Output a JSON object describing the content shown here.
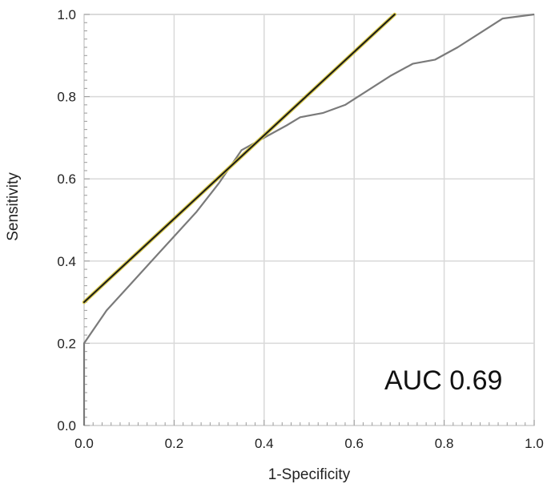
{
  "chart_data": {
    "type": "line",
    "title": "",
    "xlabel": "1-Specificity",
    "ylabel": "Sensitivity",
    "xlim": [
      0,
      1
    ],
    "ylim": [
      0,
      1
    ],
    "xticks": [
      "0.0",
      "0.2",
      "0.4",
      "0.6",
      "0.8",
      "1.0"
    ],
    "yticks": [
      "0.0",
      "0.2",
      "0.4",
      "0.6",
      "0.8",
      "1.0"
    ],
    "grid": true,
    "annotation": "AUC 0.69",
    "series": [
      {
        "color": "#7a7a7a",
        "x": [
          0.0,
          0.0,
          0.05,
          0.1,
          0.15,
          0.2,
          0.25,
          0.3,
          0.35,
          0.4,
          0.45,
          0.48,
          0.53,
          0.58,
          0.63,
          0.68,
          0.73,
          0.78,
          0.83,
          0.88,
          0.93,
          1.0
        ],
        "y": [
          0.0,
          0.2,
          0.28,
          0.34,
          0.4,
          0.46,
          0.52,
          0.59,
          0.67,
          0.7,
          0.73,
          0.75,
          0.76,
          0.78,
          0.815,
          0.85,
          0.88,
          0.89,
          0.92,
          0.955,
          0.99,
          1.0
        ]
      },
      {
        "color": "#1a1a1a",
        "highlight": "#d8c94a",
        "x": [
          0.0,
          0.69
        ],
        "y": [
          0.3,
          1.0
        ]
      }
    ]
  }
}
